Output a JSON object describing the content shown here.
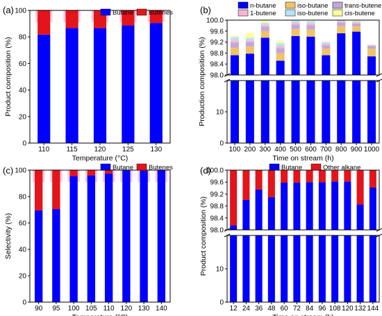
{
  "chart_data": [
    {
      "type": "bar",
      "stacked": true,
      "panel_label": "(a)",
      "xlabel": "Temperature (°C)",
      "ylabel": "Product composition (%)",
      "ylim": [
        0,
        100
      ],
      "yticks": [
        0,
        20,
        40,
        60,
        80,
        100
      ],
      "categories": [
        "110",
        "115",
        "120",
        "125",
        "130"
      ],
      "series": [
        {
          "name": "Butane",
          "color": "#0000ff",
          "values": [
            81.8,
            86.8,
            86.7,
            88.7,
            90.5
          ]
        },
        {
          "name": "Butenes",
          "color": "#e4141b",
          "values": [
            18.2,
            13.2,
            13.3,
            11.3,
            9.5
          ]
        }
      ],
      "legend_position": "top-right"
    },
    {
      "type": "bar",
      "stacked": true,
      "broken_axis": true,
      "panel_label": "(b)",
      "xlabel": "Time on stream (h)",
      "ylabel": "Production composition (%)",
      "lower_ylim": [
        0,
        20
      ],
      "lower_yticks": [
        0,
        10
      ],
      "upper_ylim": [
        98.0,
        100.0
      ],
      "upper_yticks": [
        98.0,
        98.4,
        98.8,
        99.2,
        99.6,
        100.0
      ],
      "categories": [
        "100",
        "200",
        "300",
        "400",
        "500",
        "600",
        "700",
        "800",
        "900",
        "1000"
      ],
      "series": [
        {
          "name": "n-butane",
          "color": "#0000ff",
          "values": [
            98.72,
            98.78,
            99.36,
            98.52,
            99.42,
            99.4,
            98.72,
            99.52,
            99.58,
            98.68
          ]
        },
        {
          "name": "iso-butane",
          "color": "#f0c26a",
          "values": [
            0.28,
            0.26,
            0.24,
            0.28,
            0.26,
            0.26,
            0.24,
            0.26,
            0.2,
            0.28
          ]
        },
        {
          "name": "trans-butene",
          "color": "#c3a6da",
          "values": [
            0.18,
            0.16,
            0.16,
            0.18,
            0.16,
            0.16,
            0.12,
            0.14,
            0.1,
            0.1
          ]
        },
        {
          "name": "1-butene",
          "color": "#f7b6d2",
          "values": [
            0.08,
            0.06,
            0.06,
            0.08,
            0.06,
            0.06,
            0.06,
            0.04,
            0.04,
            0.02
          ]
        },
        {
          "name": "iso-butene",
          "color": "#b7e3f5",
          "values": [
            0.12,
            0.1,
            0.08,
            0.1,
            0.08,
            0.08,
            0.06,
            0.04,
            0.04,
            0.02
          ]
        },
        {
          "name": "cis-butene",
          "color": "#fffe9e",
          "values": [
            0.06,
            0.18,
            0.06,
            0.08,
            0.02,
            0.02,
            0.02,
            0.02,
            0.02,
            0.02
          ]
        }
      ],
      "legend_position": "top"
    },
    {
      "type": "bar",
      "stacked": true,
      "panel_label": "(c)",
      "xlabel": "Temperature (°C)",
      "ylabel": "Selectivity (%)",
      "ylim": [
        0,
        100
      ],
      "yticks": [
        0,
        20,
        40,
        60,
        80,
        100
      ],
      "categories": [
        "90",
        "95",
        "100",
        "105",
        "110",
        "120",
        "130",
        "140"
      ],
      "series": [
        {
          "name": "Butane",
          "color": "#0000ff",
          "values": [
            69.5,
            70.5,
            95.5,
            96.0,
            97.5,
            99.8,
            99.5,
            99.9
          ]
        },
        {
          "name": "Butenes",
          "color": "#e4141b",
          "values": [
            30.5,
            29.5,
            4.5,
            4.0,
            2.5,
            0.2,
            0.5,
            0.1
          ]
        }
      ],
      "legend_position": "top-right"
    },
    {
      "type": "bar",
      "stacked": true,
      "broken_axis": true,
      "panel_label": "(d)",
      "xlabel": "Time on stream (h)",
      "ylabel": "Product composition (%)",
      "lower_ylim": [
        0,
        20
      ],
      "lower_yticks": [
        0,
        10
      ],
      "upper_ylim": [
        98.0,
        100.0
      ],
      "upper_yticks": [
        98.0,
        98.4,
        98.8,
        99.2,
        99.6,
        100.0
      ],
      "categories": [
        "12",
        "24",
        "36",
        "48",
        "60",
        "72",
        "84",
        "96",
        "108",
        "120",
        "132",
        "144"
      ],
      "series": [
        {
          "name": "Butane",
          "color": "#0000ff",
          "values": [
            98.15,
            99.0,
            99.35,
            99.1,
            99.58,
            99.58,
            99.6,
            99.6,
            99.62,
            99.62,
            98.85,
            99.42
          ]
        },
        {
          "name": "Other alkane",
          "color": "#e4141b",
          "values": [
            1.85,
            1.0,
            0.65,
            0.9,
            0.42,
            0.42,
            0.4,
            0.4,
            0.38,
            0.38,
            1.15,
            0.58
          ]
        }
      ],
      "legend_position": "top-right"
    }
  ]
}
